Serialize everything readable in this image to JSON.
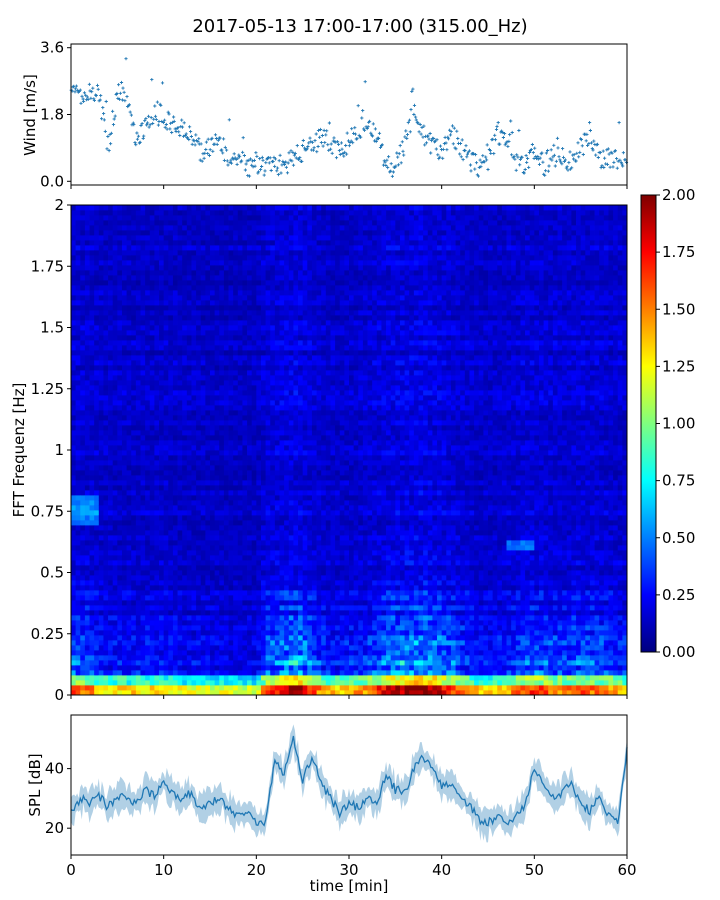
{
  "title": "2017-05-13 17:00-17:00 (315.00_Hz)",
  "colors": {
    "series": "#1f77b4",
    "axis": "#000000",
    "colormap": [
      "#00007f",
      "#0000ff",
      "#007fff",
      "#00ffff",
      "#7fff7f",
      "#ffff00",
      "#ff7f00",
      "#ff0000",
      "#7f0000"
    ]
  },
  "chart_data": [
    {
      "type": "scatter",
      "ylabel": "Wind [m/s]",
      "xlabel": "",
      "xlim": [
        0,
        60
      ],
      "ylim": [
        -0.1,
        3.7
      ],
      "yticks": [
        "0.0",
        "1.8",
        "3.6"
      ],
      "ytick_values": [
        0.0,
        1.8,
        3.6
      ],
      "x_tick_labels_visible": false,
      "marker": "plus",
      "profile": {
        "x": [
          0,
          1,
          3,
          4,
          5,
          6,
          7,
          8,
          9,
          10,
          12,
          13,
          14,
          15,
          16,
          17,
          18,
          19,
          20,
          21,
          22,
          23,
          24,
          25,
          26,
          27,
          28,
          29,
          30,
          31,
          32,
          33,
          34,
          35,
          36,
          37,
          38,
          39,
          40,
          41,
          42,
          43,
          44,
          45,
          46,
          47,
          48,
          49,
          50,
          51,
          52,
          53,
          54,
          55,
          56,
          57,
          58,
          59,
          60
        ],
        "y": [
          2.3,
          2.4,
          2.4,
          0.9,
          2.4,
          2.4,
          1.2,
          1.5,
          1.9,
          1.7,
          1.5,
          1.3,
          0.8,
          0.9,
          1.0,
          0.7,
          0.6,
          0.4,
          0.5,
          0.4,
          0.5,
          0.4,
          0.7,
          0.8,
          0.9,
          1.2,
          1.0,
          0.8,
          1.1,
          1.4,
          1.7,
          1.2,
          0.5,
          0.4,
          1.0,
          2.0,
          1.3,
          0.9,
          0.8,
          1.3,
          1.0,
          0.6,
          0.4,
          0.6,
          1.3,
          1.2,
          0.6,
          0.5,
          0.8,
          0.4,
          0.7,
          0.6,
          0.5,
          0.9,
          1.3,
          0.6,
          0.7,
          0.5,
          0.5
        ]
      },
      "spread": 0.3
    },
    {
      "type": "heatmap",
      "ylabel": "FFT Frequenz [Hz]",
      "xlabel": "",
      "xlim": [
        0,
        60
      ],
      "ylim": [
        0,
        2
      ],
      "yticks": [
        "0",
        "0.25",
        "0.5",
        "0.75",
        "1",
        "1.25",
        "1.5",
        "1.75",
        "2"
      ],
      "ytick_values": [
        0,
        0.25,
        0.5,
        0.75,
        1,
        1.25,
        1.5,
        1.75,
        2
      ],
      "x_tick_labels_visible": false,
      "colorbar": {
        "range": [
          0,
          2
        ],
        "ticks": [
          "0.00",
          "0.25",
          "0.50",
          "0.75",
          "1.00",
          "1.25",
          "1.50",
          "1.75",
          "2.00"
        ],
        "tick_values": [
          0,
          0.25,
          0.5,
          0.75,
          1.0,
          1.25,
          1.5,
          1.75,
          2.0
        ]
      },
      "activity_profile": {
        "x": [
          0,
          2,
          4,
          6,
          8,
          10,
          12,
          14,
          16,
          18,
          20,
          21,
          22,
          23,
          24,
          25,
          26,
          27,
          28,
          29,
          30,
          32,
          34,
          35,
          36,
          37,
          38,
          39,
          40,
          41,
          42,
          44,
          46,
          48,
          49,
          50,
          51,
          52,
          53,
          54,
          55,
          56,
          57,
          58,
          60
        ],
        "level": [
          0.55,
          0.45,
          0.3,
          0.3,
          0.3,
          0.3,
          0.25,
          0.2,
          0.2,
          0.15,
          0.15,
          0.55,
          0.65,
          0.75,
          0.85,
          0.8,
          0.6,
          0.4,
          0.35,
          0.3,
          0.35,
          0.45,
          0.7,
          0.75,
          0.8,
          0.85,
          0.85,
          0.8,
          0.7,
          0.6,
          0.5,
          0.3,
          0.3,
          0.45,
          0.55,
          0.6,
          0.55,
          0.5,
          0.45,
          0.5,
          0.55,
          0.5,
          0.5,
          0.45,
          0.35
        ]
      }
    },
    {
      "type": "line",
      "ylabel": "SPL [dB]",
      "xlabel": "time [min]",
      "xlim": [
        0,
        60
      ],
      "ylim": [
        11,
        58
      ],
      "yticks": [
        "20",
        "40"
      ],
      "ytick_values": [
        20,
        40
      ],
      "xticks": [
        "0",
        "10",
        "20",
        "30",
        "40",
        "50",
        "60"
      ],
      "xtick_values": [
        0,
        10,
        20,
        30,
        40,
        50,
        60
      ],
      "x": [
        0,
        1,
        2,
        3,
        4,
        5,
        6,
        7,
        8,
        9,
        10,
        11,
        12,
        13,
        14,
        15,
        16,
        17,
        18,
        19,
        20,
        21,
        22,
        23,
        24,
        25,
        26,
        27,
        28,
        29,
        30,
        31,
        32,
        33,
        34,
        35,
        36,
        37,
        38,
        39,
        40,
        41,
        42,
        43,
        44,
        45,
        46,
        47,
        48,
        49,
        50,
        51,
        52,
        53,
        54,
        55,
        56,
        57,
        58,
        59,
        60
      ],
      "y": [
        25,
        30,
        28,
        31,
        27,
        30,
        31,
        28,
        33,
        31,
        36,
        32,
        30,
        32,
        26,
        28,
        30,
        26,
        24,
        26,
        22,
        22,
        43,
        38,
        50,
        36,
        44,
        35,
        30,
        25,
        28,
        27,
        31,
        27,
        38,
        33,
        32,
        40,
        44,
        41,
        34,
        35,
        30,
        28,
        23,
        22,
        24,
        22,
        24,
        28,
        40,
        35,
        30,
        32,
        35,
        28,
        26,
        30,
        24,
        22,
        46
      ]
    }
  ]
}
